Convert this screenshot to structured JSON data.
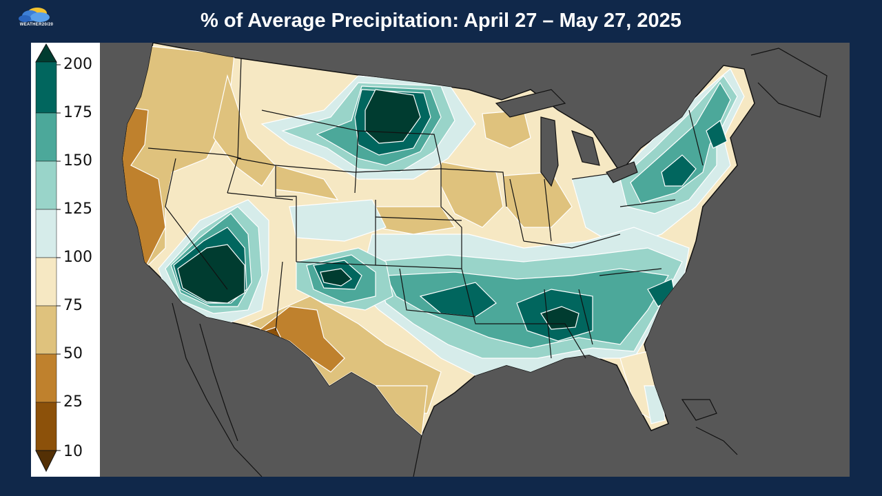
{
  "header": {
    "title": "% of Average Precipitation: April 27 – May 27, 2025",
    "logo_text": "WEATHER20/20",
    "background_color": "#10284a"
  },
  "legend": {
    "ticks": [
      "200",
      "175",
      "150",
      "125",
      "100",
      "75",
      "50",
      "25",
      "10"
    ],
    "bins": [
      {
        "range": "10-25",
        "color": "#8c510a"
      },
      {
        "range": "25-50",
        "color": "#bf812d"
      },
      {
        "range": "50-75",
        "color": "#dfc27d"
      },
      {
        "range": "75-100",
        "color": "#f6e8c3"
      },
      {
        "range": "100-125",
        "color": "#d6ecea"
      },
      {
        "range": "125-150",
        "color": "#99d4c9"
      },
      {
        "range": "150-175",
        "color": "#4ca89a"
      },
      {
        "range": "175-200",
        "color": "#01665e"
      },
      {
        "range": ">200",
        "color": "#003c30"
      },
      {
        "range": "<10",
        "color": "#543005"
      }
    ]
  },
  "map": {
    "background_color": "#575757",
    "regions": [
      {
        "name": "pacific-coast",
        "percent_bin": "25-75"
      },
      {
        "name": "desert-southwest",
        "percent_bin": ">175"
      },
      {
        "name": "northern-plains",
        "percent_bin": ">175"
      },
      {
        "name": "southern-plains",
        "percent_bin": "150-200"
      },
      {
        "name": "deep-south",
        "percent_bin": ">175"
      },
      {
        "name": "northeast",
        "percent_bin": "150-175"
      },
      {
        "name": "west-texas",
        "percent_bin": "10-50"
      },
      {
        "name": "midwest",
        "percent_bin": "50-100"
      }
    ]
  }
}
